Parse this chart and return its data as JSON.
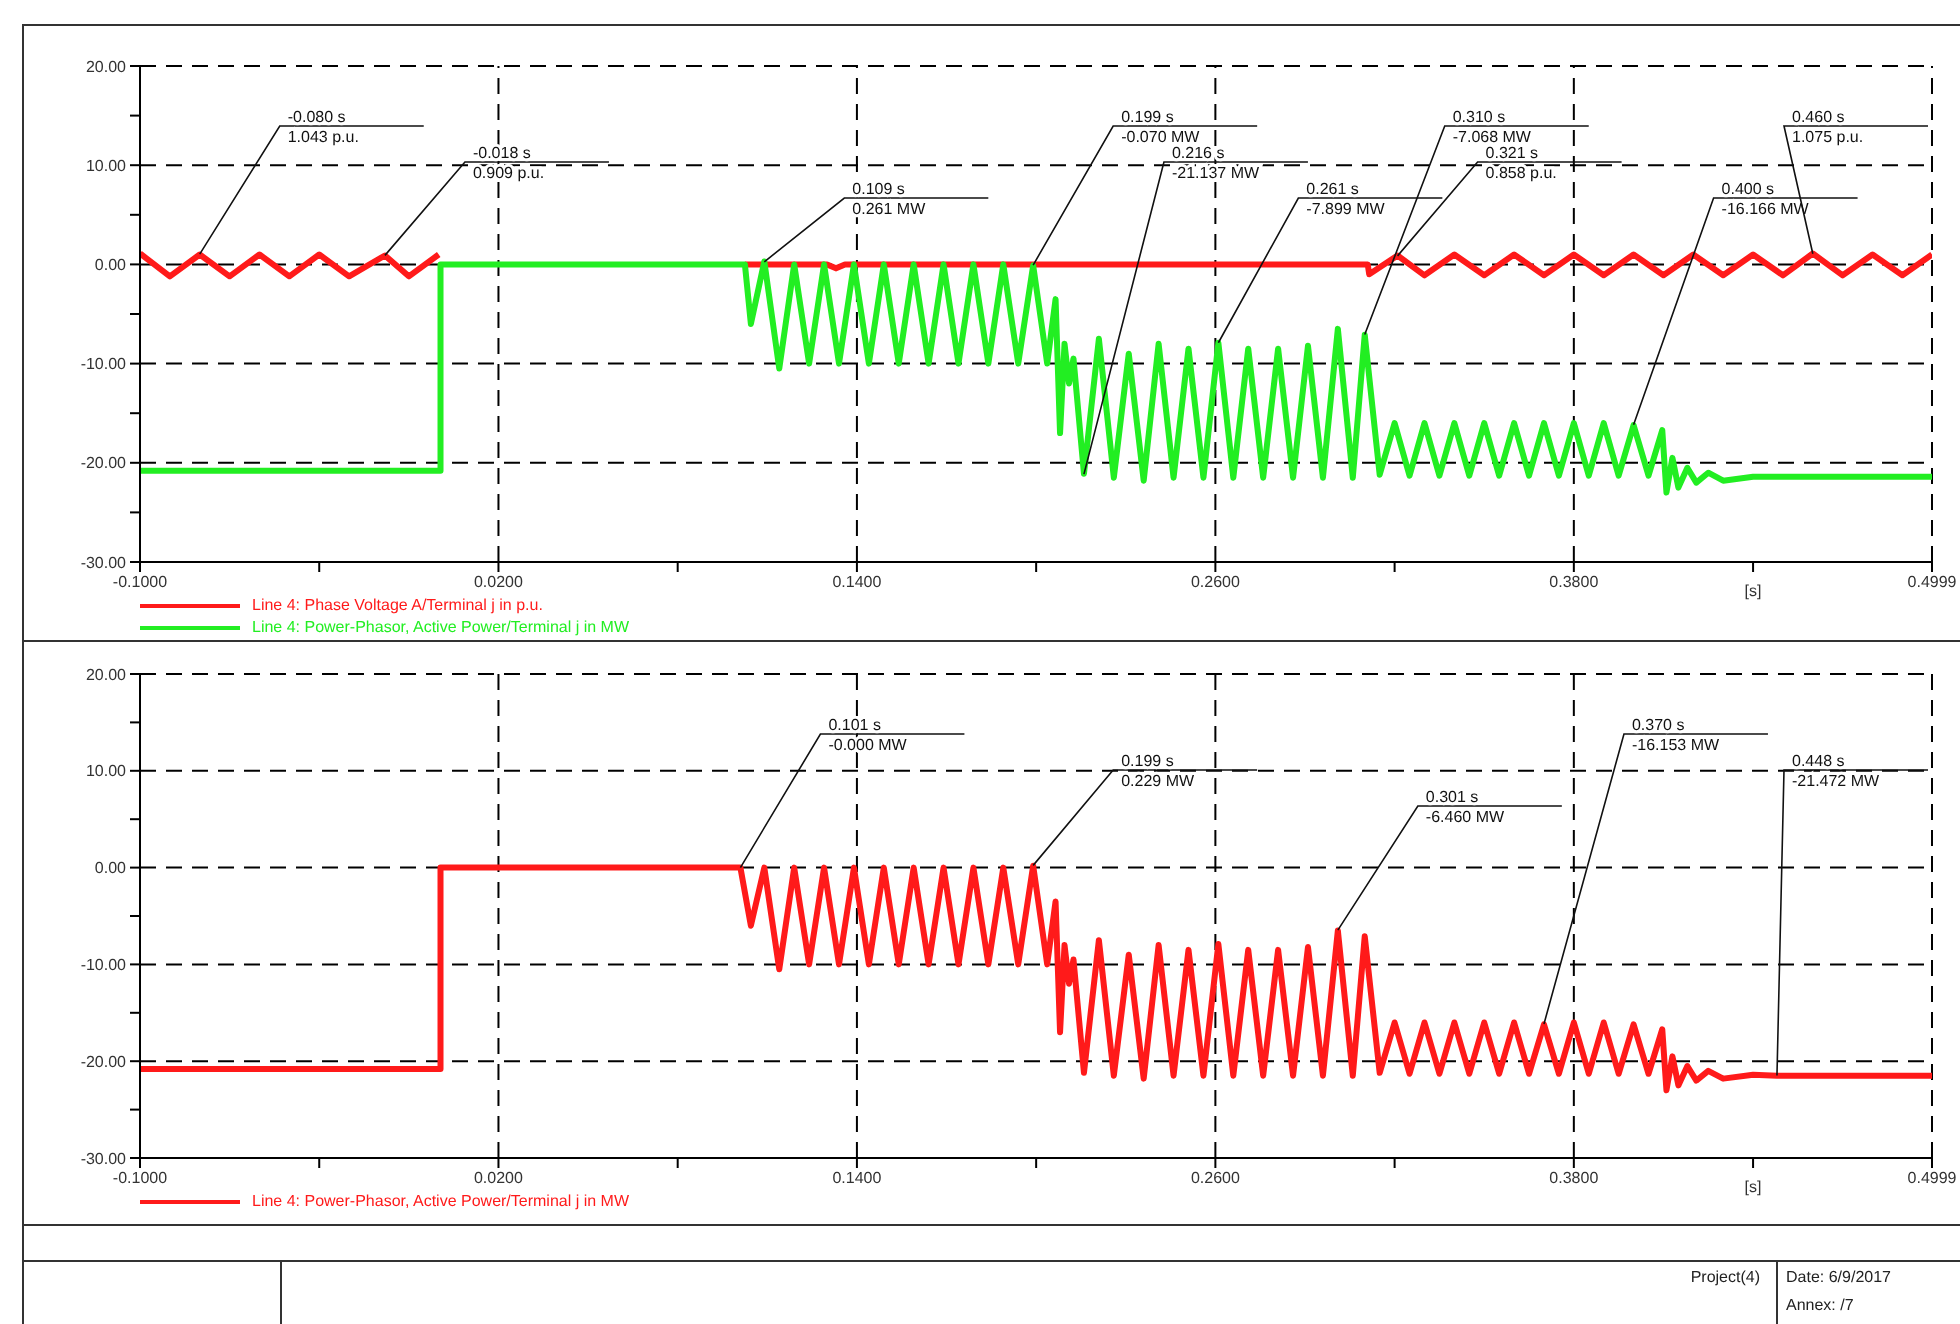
{
  "chart_data": [
    {
      "type": "line",
      "xlabel": "[s]",
      "xlim": [
        -0.1,
        0.4999
      ],
      "ylim": [
        -30,
        20
      ],
      "xticks": [
        {
          "value": -0.1,
          "label": "-0.1000"
        },
        {
          "value": -0.04,
          "label": null
        },
        {
          "value": 0.02,
          "label": "0.0200"
        },
        {
          "value": 0.08,
          "label": null
        },
        {
          "value": 0.14,
          "label": "0.1400"
        },
        {
          "value": 0.2,
          "label": null
        },
        {
          "value": 0.26,
          "label": "0.2600"
        },
        {
          "value": 0.32,
          "label": null
        },
        {
          "value": 0.38,
          "label": "0.3800"
        },
        {
          "value": 0.44,
          "label": null
        },
        {
          "value": 0.4999,
          "label": "0.4999"
        }
      ],
      "yticks": [
        {
          "value": -30,
          "label": "-30.00"
        },
        {
          "value": -25,
          "label": null
        },
        {
          "value": -20,
          "label": "-20.00"
        },
        {
          "value": -15,
          "label": null
        },
        {
          "value": -10,
          "label": "-10.00"
        },
        {
          "value": -5,
          "label": null
        },
        {
          "value": 0,
          "label": "0.00"
        },
        {
          "value": 5,
          "label": null
        },
        {
          "value": 10,
          "label": "10.00"
        },
        {
          "value": 15,
          "label": null
        },
        {
          "value": 20,
          "label": "20.00"
        }
      ],
      "grid": true,
      "legend": "bottom left",
      "series": [
        {
          "name": "Line 4: Phase Voltage A/Terminal j in p.u.",
          "color": "#ff1a1a",
          "x": [
            -0.1,
            -0.09,
            -0.08,
            -0.07,
            -0.06,
            -0.05,
            -0.04,
            -0.03,
            -0.018,
            -0.01,
            0.0,
            0.05,
            0.1025,
            0.13,
            0.133,
            0.136,
            0.311,
            0.3115,
            0.321,
            0.33,
            0.34,
            0.35,
            0.36,
            0.37,
            0.38,
            0.39,
            0.4,
            0.41,
            0.42,
            0.43,
            0.44,
            0.45,
            0.46,
            0.47,
            0.48,
            0.49,
            0.4999
          ],
          "values": [
            1.1,
            -1.2,
            1.0,
            -1.2,
            1.0,
            -1.2,
            1.0,
            -1.2,
            0.9,
            -1.2,
            1.0,
            null,
            0,
            0,
            -0.4,
            0,
            0,
            -1,
            0.9,
            -1.1,
            1.0,
            -1.1,
            1.0,
            -1.1,
            1.0,
            -1.1,
            1.0,
            -1.1,
            1.0,
            -1.1,
            1.0,
            -1.1,
            1.1,
            -1.1,
            1.0,
            -1.1,
            1.0
          ]
        },
        {
          "name": "Line 4: Power-Phasor, Active Power/Terminal j in MW",
          "color": "#22ee22",
          "x": [
            -0.1,
            0.0006,
            0.0006,
            0.1025,
            0.1045,
            0.109,
            0.114,
            0.119,
            0.124,
            0.129,
            0.134,
            0.139,
            0.144,
            0.149,
            0.154,
            0.159,
            0.164,
            0.169,
            0.174,
            0.179,
            0.184,
            0.189,
            0.194,
            0.199,
            0.2037,
            0.2065,
            0.208,
            0.2095,
            0.211,
            0.2125,
            0.216,
            0.221,
            0.226,
            0.231,
            0.236,
            0.241,
            0.246,
            0.251,
            0.256,
            0.261,
            0.266,
            0.271,
            0.276,
            0.281,
            0.286,
            0.291,
            0.296,
            0.301,
            0.306,
            0.31,
            0.315,
            0.32,
            0.325,
            0.33,
            0.335,
            0.34,
            0.345,
            0.35,
            0.355,
            0.36,
            0.365,
            0.37,
            0.375,
            0.38,
            0.385,
            0.39,
            0.395,
            0.4,
            0.405,
            0.4096,
            0.411,
            0.413,
            0.415,
            0.418,
            0.421,
            0.425,
            0.43,
            0.44,
            0.4999
          ],
          "values": [
            -20.8,
            -20.8,
            0,
            0,
            -6,
            0.3,
            -10.5,
            0,
            -10,
            0,
            -10,
            0,
            -10,
            0,
            -10,
            0,
            -10,
            0,
            -10,
            0,
            -10,
            0,
            -10,
            -0.1,
            -10,
            -3.5,
            -17,
            -8,
            -12,
            -9.5,
            -21.1,
            -7.5,
            -21.5,
            -9,
            -21.8,
            -8,
            -21.5,
            -8.5,
            -21.5,
            -7.9,
            -21.5,
            -8.5,
            -21.5,
            -8.5,
            -21.5,
            -8.2,
            -21.5,
            -6.5,
            -21.5,
            -7.1,
            -21.2,
            -16,
            -21.3,
            -16,
            -21.3,
            -16,
            -21.3,
            -16,
            -21.3,
            -16,
            -21.3,
            -16,
            -21.3,
            -16,
            -21.3,
            -16,
            -21.3,
            -16.2,
            -21.3,
            -16.7,
            -23,
            -19.5,
            -22.5,
            -20.5,
            -22,
            -21,
            -21.8,
            -21.4,
            -21.4
          ]
        }
      ],
      "annotations": [
        {
          "text": "-0.080 s\n1.043 p.u.",
          "x": -0.08,
          "y": 1.043
        },
        {
          "text": "-0.018 s\n0.909 p.u.",
          "x": -0.018,
          "y": 0.909
        },
        {
          "text": "0.109 s\n0.261 MW",
          "x": 0.109,
          "y": 0.261
        },
        {
          "text": "0.199 s\n-0.070 MW",
          "x": 0.199,
          "y": -0.07
        },
        {
          "text": "0.216 s\n-21.137 MW",
          "x": 0.216,
          "y": -21.137
        },
        {
          "text": "0.261 s\n-7.899 MW",
          "x": 0.261,
          "y": -7.899
        },
        {
          "text": "0.310 s\n-7.068 MW",
          "x": 0.31,
          "y": -7.068
        },
        {
          "text": "0.321 s\n0.858 p.u.",
          "x": 0.321,
          "y": 0.858
        },
        {
          "text": "0.400 s\n-16.166 MW",
          "x": 0.4,
          "y": -16.166
        },
        {
          "text": "0.460 s\n1.075 p.u.",
          "x": 0.46,
          "y": 1.075
        }
      ]
    },
    {
      "type": "line",
      "xlabel": "[s]",
      "xlim": [
        -0.1,
        0.4999
      ],
      "ylim": [
        -30,
        20
      ],
      "xticks": [
        {
          "value": -0.1,
          "label": "-0.1000"
        },
        {
          "value": -0.04,
          "label": null
        },
        {
          "value": 0.02,
          "label": "0.0200"
        },
        {
          "value": 0.08,
          "label": null
        },
        {
          "value": 0.14,
          "label": "0.1400"
        },
        {
          "value": 0.2,
          "label": null
        },
        {
          "value": 0.26,
          "label": "0.2600"
        },
        {
          "value": 0.32,
          "label": null
        },
        {
          "value": 0.38,
          "label": "0.3800"
        },
        {
          "value": 0.44,
          "label": null
        },
        {
          "value": 0.4999,
          "label": "0.4999"
        }
      ],
      "yticks": [
        {
          "value": -30,
          "label": "-30.00"
        },
        {
          "value": -25,
          "label": null
        },
        {
          "value": -20,
          "label": "-20.00"
        },
        {
          "value": -15,
          "label": null
        },
        {
          "value": -10,
          "label": "-10.00"
        },
        {
          "value": -5,
          "label": null
        },
        {
          "value": 0,
          "label": "0.00"
        },
        {
          "value": 5,
          "label": null
        },
        {
          "value": 10,
          "label": "10.00"
        },
        {
          "value": 15,
          "label": null
        },
        {
          "value": 20,
          "label": "20.00"
        }
      ],
      "grid": true,
      "legend": "bottom left",
      "series": [
        {
          "name": "Line 4: Power-Phasor, Active Power/Terminal j in MW",
          "color": "#ff1a1a",
          "x": [
            -0.1,
            0.0006,
            0.0006,
            0.101,
            0.1045,
            0.109,
            0.114,
            0.119,
            0.124,
            0.129,
            0.134,
            0.139,
            0.144,
            0.149,
            0.154,
            0.159,
            0.164,
            0.169,
            0.174,
            0.179,
            0.184,
            0.189,
            0.194,
            0.199,
            0.2037,
            0.2065,
            0.208,
            0.2095,
            0.211,
            0.2125,
            0.216,
            0.221,
            0.226,
            0.231,
            0.236,
            0.241,
            0.246,
            0.251,
            0.256,
            0.261,
            0.266,
            0.271,
            0.276,
            0.281,
            0.286,
            0.291,
            0.296,
            0.301,
            0.306,
            0.31,
            0.315,
            0.32,
            0.325,
            0.33,
            0.335,
            0.34,
            0.345,
            0.35,
            0.355,
            0.36,
            0.365,
            0.37,
            0.375,
            0.38,
            0.385,
            0.39,
            0.395,
            0.4,
            0.405,
            0.4096,
            0.411,
            0.413,
            0.415,
            0.418,
            0.421,
            0.425,
            0.43,
            0.44,
            0.448,
            0.4999
          ],
          "values": [
            -20.8,
            -20.8,
            0,
            0,
            -6,
            0,
            -10.5,
            0,
            -10,
            0,
            -10,
            0,
            -10,
            0,
            -10,
            0,
            -10,
            0,
            -10,
            0,
            -10,
            0,
            -10,
            0.2,
            -10,
            -3.5,
            -17,
            -8,
            -12,
            -9.5,
            -21.2,
            -7.5,
            -21.5,
            -9,
            -21.8,
            -8,
            -21.5,
            -8.5,
            -21.5,
            -7.9,
            -21.5,
            -8.5,
            -21.5,
            -8.5,
            -21.5,
            -8.2,
            -21.5,
            -6.5,
            -21.5,
            -7.1,
            -21.2,
            -16,
            -21.3,
            -16,
            -21.3,
            -16,
            -21.3,
            -16,
            -21.3,
            -16,
            -21.3,
            -16.2,
            -21.3,
            -16,
            -21.3,
            -16,
            -21.3,
            -16.2,
            -21.3,
            -16.7,
            -23,
            -19.5,
            -22.5,
            -20.5,
            -22,
            -21,
            -21.8,
            -21.4,
            -21.5,
            -21.5
          ]
        }
      ],
      "annotations": [
        {
          "text": "0.101 s\n-0.000 MW",
          "x": 0.101,
          "y": 0
        },
        {
          "text": "0.199 s\n0.229 MW",
          "x": 0.199,
          "y": 0.229
        },
        {
          "text": "0.301 s\n-6.460 MW",
          "x": 0.301,
          "y": -6.46
        },
        {
          "text": "0.370 s\n-16.153 MW",
          "x": 0.37,
          "y": -16.153
        },
        {
          "text": "0.448 s\n-21.472 MW",
          "x": 0.448,
          "y": -21.472
        },
        "Project(4)",
        "Date: 6/9/2017",
        "Annex: /7"
      ]
    }
  ]
}
